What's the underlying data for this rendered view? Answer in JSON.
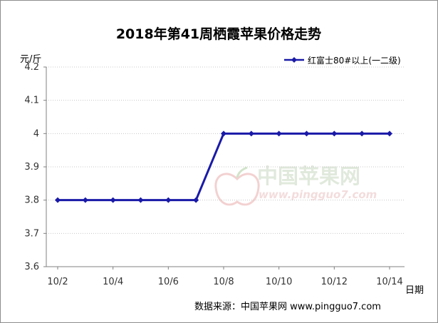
{
  "chart_data": {
    "type": "line",
    "title": "2018年第41周栖霞苹果价格走势",
    "ylabel": "元/斤",
    "xlabel": "日期",
    "ylim": [
      3.6,
      4.2
    ],
    "yticks": [
      "3.6",
      "3.7",
      "3.8",
      "3.9",
      "4",
      "4.1",
      "4.2"
    ],
    "x_tick_labels": [
      "10/2",
      "10/4",
      "10/6",
      "10/8",
      "10/10",
      "10/12",
      "10/14"
    ],
    "x": [
      "10/2",
      "10/3",
      "10/4",
      "10/5",
      "10/6",
      "10/7",
      "10/8",
      "10/9",
      "10/10",
      "10/11",
      "10/12",
      "10/13",
      "10/14"
    ],
    "series": [
      {
        "name": "红富士80#以上(一二级)",
        "color": "#1a1aa8",
        "values": [
          3.8,
          3.8,
          3.8,
          3.8,
          3.8,
          3.8,
          4.0,
          4.0,
          4.0,
          4.0,
          4.0,
          4.0,
          4.0
        ]
      }
    ],
    "grid": true,
    "legend_position": "top-right",
    "watermark": {
      "brand": "中国苹果网",
      "url": "www.pingguo7.com"
    },
    "source": "数据来源：中国苹果网 www.pingguo7.com"
  }
}
